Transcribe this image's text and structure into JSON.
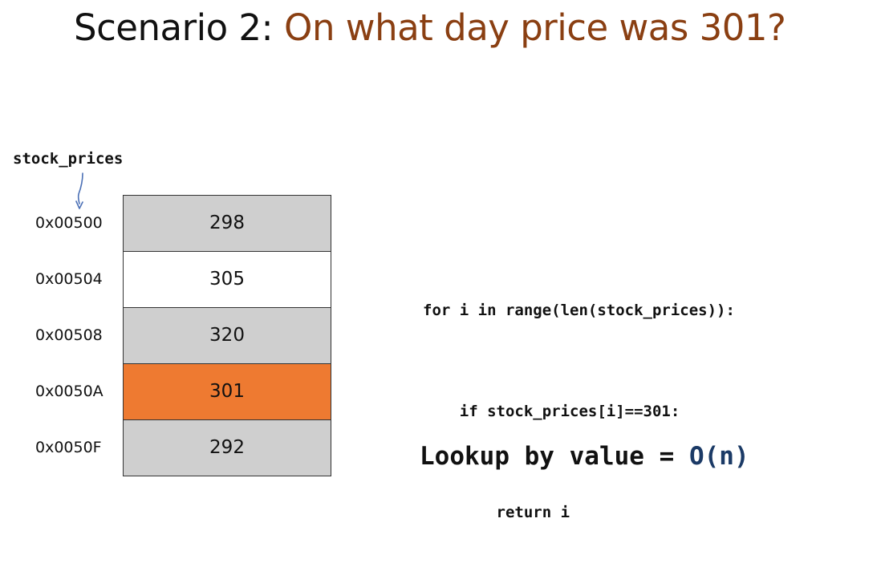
{
  "title": {
    "prefix": "Scenario 2: ",
    "question": "On what day price was 301?"
  },
  "array": {
    "name": "stock_prices",
    "rows": [
      {
        "address": "0x00500",
        "value": "298",
        "state": "gray"
      },
      {
        "address": "0x00504",
        "value": "305",
        "state": "white"
      },
      {
        "address": "0x00508",
        "value": "320",
        "state": "gray"
      },
      {
        "address": "0x0050A",
        "value": "301",
        "state": "hit"
      },
      {
        "address": "0x0050F",
        "value": "292",
        "state": "gray"
      }
    ]
  },
  "code": {
    "lines": [
      "for i in range(len(stock_prices)):",
      "    if stock_prices[i]==301:",
      "        return i"
    ]
  },
  "complexity": {
    "label": "Lookup by value = ",
    "value": "O(n)"
  },
  "colors": {
    "title_question": "#8a3f12",
    "cell_gray": "#cfcfcf",
    "cell_white": "#ffffff",
    "cell_match": "#ee7a31",
    "pointer_arrow": "#4a6fb5",
    "big_o": "#1b3a66"
  }
}
